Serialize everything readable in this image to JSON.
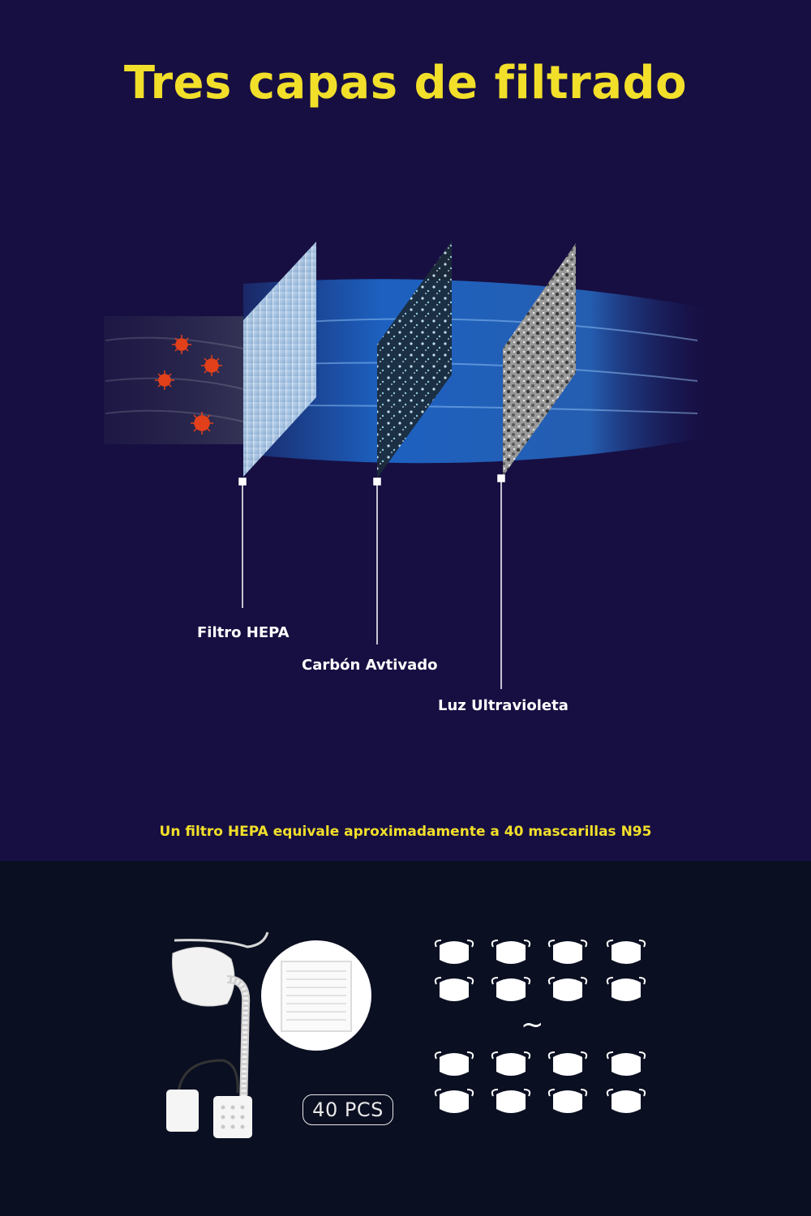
{
  "title": "Tres capas de filtrado",
  "layers": [
    {
      "label": "Filtro HEPA"
    },
    {
      "label": "Carbón Avtivado"
    },
    {
      "label": "Luz Ultravioleta"
    }
  ],
  "note": "Un filtro HEPA equivale aproximadamente a 40 mascarillas N95",
  "pcs_badge": "40 PCS",
  "tilde": "~",
  "colors": {
    "background_top": "#170f42",
    "background_bottom": "#0b0f22",
    "accent_yellow": "#f2df2a",
    "airflow_blue": "#1e6fd6",
    "virus_red": "#e2401a"
  }
}
